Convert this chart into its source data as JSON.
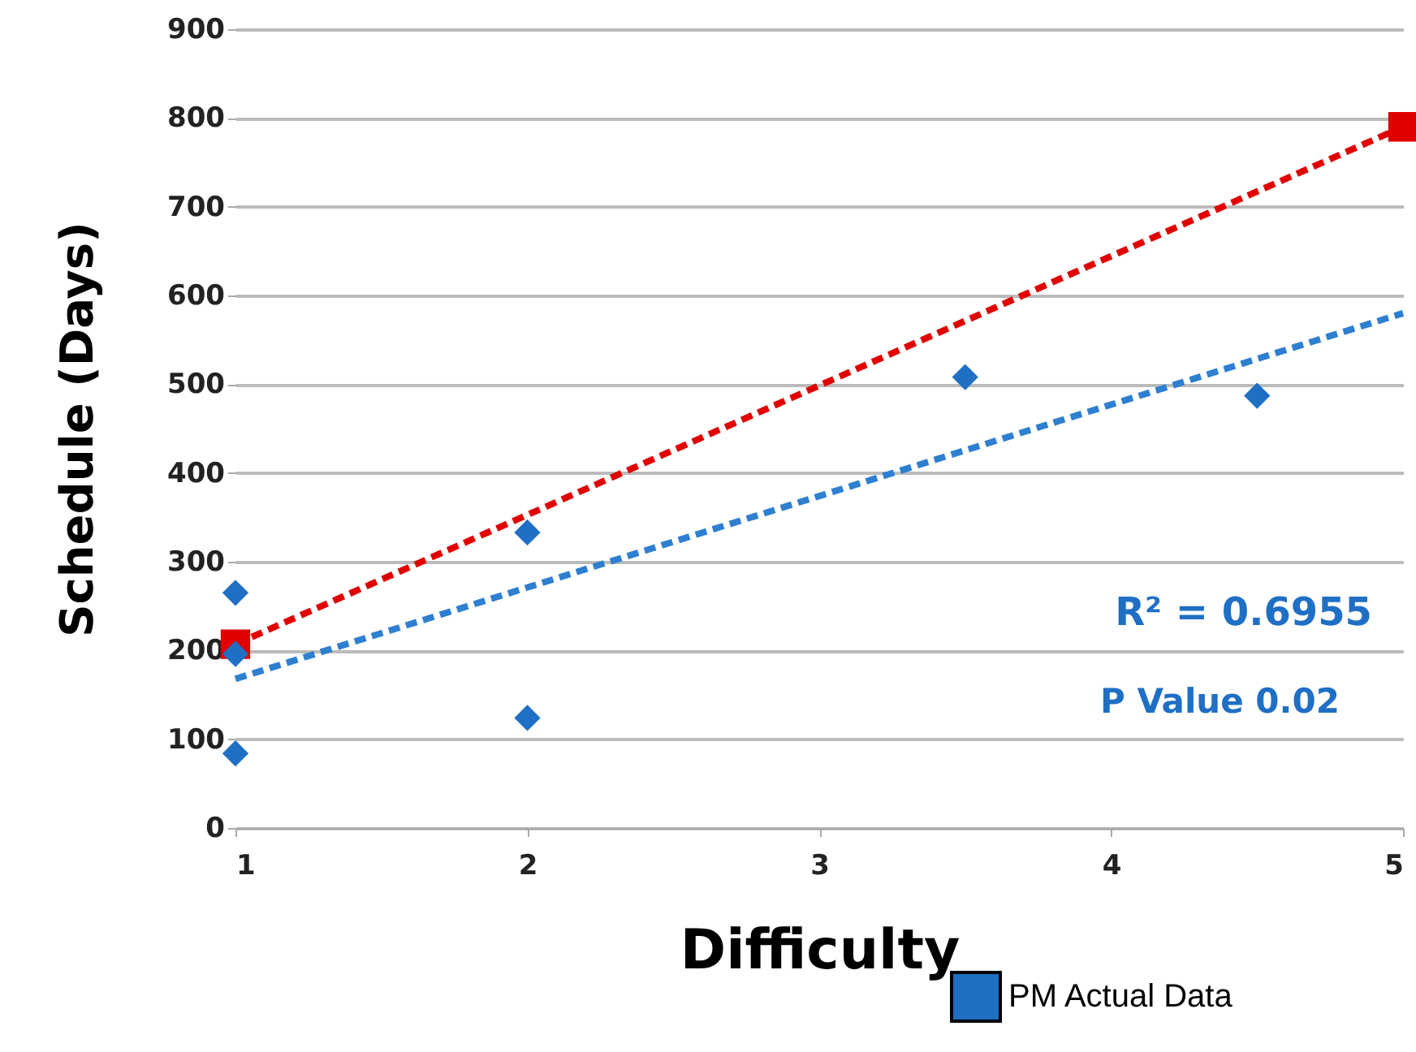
{
  "chart_data": {
    "type": "scatter",
    "xlabel": "Difficulty",
    "ylabel": "Schedule (Days)",
    "xlim": [
      1,
      5
    ],
    "xticks": [
      1,
      2,
      3,
      4,
      5
    ],
    "ylim": [
      0,
      900
    ],
    "yticks": [
      0,
      100,
      200,
      300,
      400,
      500,
      600,
      700,
      800,
      900
    ],
    "grid": "y",
    "legend": "bottom right",
    "annotations": [
      "R² = 0.6955",
      "P Value 0.02"
    ],
    "series": [
      {
        "name": "PM Actual Data",
        "type": "scatter",
        "color": "#1f6fc5",
        "marker": "diamond",
        "x": [
          1,
          1,
          1,
          2,
          2,
          3.5,
          4.5
        ],
        "values": [
          265,
          196,
          84,
          124,
          333,
          508,
          487
        ]
      },
      {
        "type": "line",
        "color": "#2e7fd0",
        "marker": "none",
        "line_style": "dashed",
        "x": [
          1,
          5
        ],
        "values": [
          168,
          580
        ]
      },
      {
        "type": "line",
        "color": "#e00000",
        "marker": "square",
        "line_style": "dashed",
        "x": [
          1,
          5
        ],
        "values": [
          207,
          790
        ]
      }
    ]
  }
}
